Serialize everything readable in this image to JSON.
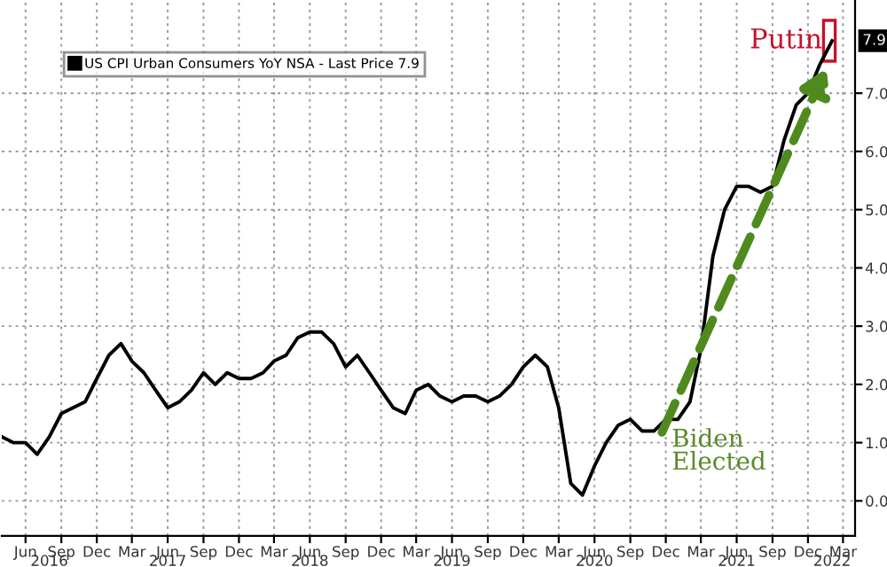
{
  "chart_data": {
    "type": "line",
    "x": [
      "2016-04",
      "2016-05",
      "2016-06",
      "2016-07",
      "2016-08",
      "2016-09",
      "2016-10",
      "2016-11",
      "2016-12",
      "2017-01",
      "2017-02",
      "2017-03",
      "2017-04",
      "2017-05",
      "2017-06",
      "2017-07",
      "2017-08",
      "2017-09",
      "2017-10",
      "2017-11",
      "2017-12",
      "2018-01",
      "2018-02",
      "2018-03",
      "2018-04",
      "2018-05",
      "2018-06",
      "2018-07",
      "2018-08",
      "2018-09",
      "2018-10",
      "2018-11",
      "2018-12",
      "2019-01",
      "2019-02",
      "2019-03",
      "2019-04",
      "2019-05",
      "2019-06",
      "2019-07",
      "2019-08",
      "2019-09",
      "2019-10",
      "2019-11",
      "2019-12",
      "2020-01",
      "2020-02",
      "2020-03",
      "2020-04",
      "2020-05",
      "2020-06",
      "2020-07",
      "2020-08",
      "2020-09",
      "2020-10",
      "2020-11",
      "2020-12",
      "2021-01",
      "2021-02",
      "2021-03",
      "2021-04",
      "2021-05",
      "2021-06",
      "2021-07",
      "2021-08",
      "2021-09",
      "2021-10",
      "2021-11",
      "2021-12",
      "2022-01",
      "2022-02"
    ],
    "series": [
      {
        "name": "US CPI Urban Consumers YoY NSA - Last Price 7.9",
        "color": "#000000",
        "values": [
          1.1,
          1.0,
          1.0,
          0.8,
          1.1,
          1.5,
          1.6,
          1.7,
          2.1,
          2.5,
          2.7,
          2.4,
          2.2,
          1.9,
          1.6,
          1.7,
          1.9,
          2.2,
          2.0,
          2.2,
          2.1,
          2.1,
          2.2,
          2.4,
          2.5,
          2.8,
          2.9,
          2.9,
          2.7,
          2.3,
          2.5,
          2.2,
          1.9,
          1.6,
          1.5,
          1.9,
          2.0,
          1.8,
          1.7,
          1.8,
          1.8,
          1.7,
          1.8,
          2.0,
          2.3,
          2.5,
          2.3,
          1.6,
          0.3,
          0.1,
          0.6,
          1.0,
          1.3,
          1.4,
          1.2,
          1.2,
          1.4,
          1.4,
          1.7,
          2.6,
          4.2,
          5.0,
          5.4,
          5.4,
          5.3,
          5.4,
          6.2,
          6.8,
          7.0,
          7.5,
          7.9
        ]
      }
    ],
    "xlim": [
      "2016-04-01",
      "2022-04-01"
    ],
    "x2lim": [
      "2016-04-01",
      "2022-04-01"
    ],
    "xticks": [
      {
        "value": "2016-06",
        "label": "Jun"
      },
      {
        "value": "2016-09",
        "label": "Sep"
      },
      {
        "value": "2016-12",
        "label": "Dec"
      },
      {
        "value": "2017-03",
        "label": "Mar"
      },
      {
        "value": "2017-06",
        "label": "Jun"
      },
      {
        "value": "2017-09",
        "label": "Sep"
      },
      {
        "value": "2017-12",
        "label": "Dec"
      },
      {
        "value": "2018-03",
        "label": "Mar"
      },
      {
        "value": "2018-06",
        "label": "Jun"
      },
      {
        "value": "2018-09",
        "label": "Sep"
      },
      {
        "value": "2018-12",
        "label": "Dec"
      },
      {
        "value": "2019-03",
        "label": "Mar"
      },
      {
        "value": "2019-06",
        "label": "Jun"
      },
      {
        "value": "2019-09",
        "label": "Sep"
      },
      {
        "value": "2019-12",
        "label": "Dec"
      },
      {
        "value": "2020-03",
        "label": "Mar"
      },
      {
        "value": "2020-06",
        "label": "Jun"
      },
      {
        "value": "2020-09",
        "label": "Sep"
      },
      {
        "value": "2020-12",
        "label": "Dec"
      },
      {
        "value": "2021-03",
        "label": "Mar"
      },
      {
        "value": "2021-06",
        "label": "Jun"
      },
      {
        "value": "2021-09",
        "label": "Sep"
      },
      {
        "value": "2021-12",
        "label": "Dec"
      },
      {
        "value": "2022-03",
        "label": "Mar"
      }
    ],
    "x2ticks": [
      {
        "value": "2016-08",
        "label": "2016"
      },
      {
        "value": "2017-06",
        "label": "2017"
      },
      {
        "value": "2018-06",
        "label": "2018"
      },
      {
        "value": "2019-06",
        "label": "2019"
      },
      {
        "value": "2020-06",
        "label": "2020"
      },
      {
        "value": "2021-06",
        "label": "2021"
      },
      {
        "value": "2022-02",
        "label": "2022"
      }
    ],
    "ylim": [
      -0.6,
      8.6
    ],
    "yticks": [
      {
        "value": 0,
        "label": "0.0"
      },
      {
        "value": 1,
        "label": "1.0"
      },
      {
        "value": 2,
        "label": "2.0"
      },
      {
        "value": 3,
        "label": "3.0"
      },
      {
        "value": 4,
        "label": "4.0"
      },
      {
        "value": 5,
        "label": "5.0"
      },
      {
        "value": 6,
        "label": "6.0"
      },
      {
        "value": 7,
        "label": "7.0"
      }
    ],
    "annotations": [
      {
        "text": "Biden Elected",
        "x": "2020-11",
        "y": 1.1
      },
      {
        "text": "Putin",
        "x": "2022-02",
        "y": 7.9
      },
      {
        "text": "7.9",
        "y": 7.9
      }
    ],
    "grid": true,
    "legend": "top left",
    "line_style": "solid",
    "marker": "none"
  }
}
